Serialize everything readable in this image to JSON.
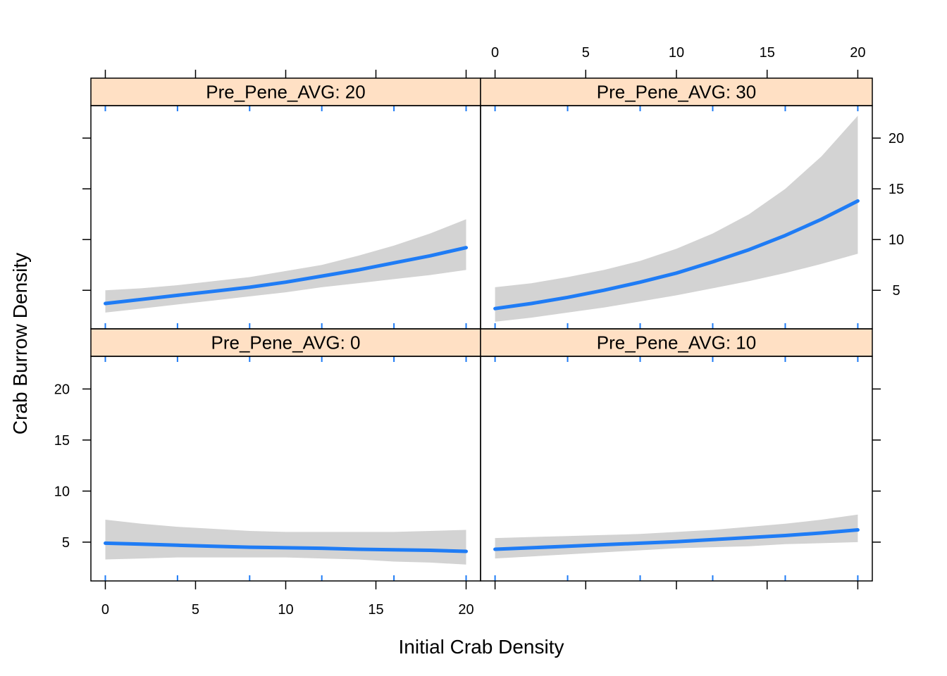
{
  "chart_data": {
    "type": "line",
    "xlabel": "Initial Crab Density",
    "ylabel": "Crab Burrow Density",
    "xlim": [
      -0.8,
      20.8
    ],
    "ylim": [
      1.2,
      23.2
    ],
    "x_ticks": [
      0,
      5,
      10,
      15,
      20
    ],
    "y_ticks": [
      5,
      10,
      15,
      20
    ],
    "x_rug": [
      0,
      4,
      8,
      12,
      16,
      20
    ],
    "colors": {
      "line": "#1f7cf5",
      "band": "#d3d3d3",
      "strip": "#ffe0c4",
      "rug": "#1f7cf5"
    },
    "panels": [
      {
        "strip_label": "Pre_Pene_AVG: 20",
        "position": "top-left",
        "x": [
          0,
          2,
          4,
          6,
          8,
          10,
          12,
          14,
          16,
          18,
          20
        ],
        "fit": [
          3.7,
          4.1,
          4.5,
          4.9,
          5.3,
          5.8,
          6.4,
          7.0,
          7.7,
          8.4,
          9.2
        ],
        "lower": [
          2.8,
          3.2,
          3.6,
          4.0,
          4.4,
          4.8,
          5.3,
          5.7,
          6.1,
          6.5,
          7.0
        ],
        "upper": [
          5.0,
          5.2,
          5.5,
          5.9,
          6.3,
          6.9,
          7.5,
          8.4,
          9.4,
          10.6,
          12.0
        ]
      },
      {
        "strip_label": "Pre_Pene_AVG: 30",
        "position": "top-right",
        "x": [
          0,
          2,
          4,
          6,
          8,
          10,
          12,
          14,
          16,
          18,
          20
        ],
        "fit": [
          3.2,
          3.7,
          4.3,
          5.0,
          5.8,
          6.7,
          7.8,
          9.0,
          10.4,
          12.0,
          13.8
        ],
        "lower": [
          1.9,
          2.3,
          2.8,
          3.3,
          3.9,
          4.5,
          5.2,
          5.9,
          6.7,
          7.6,
          8.6
        ],
        "upper": [
          5.3,
          5.7,
          6.3,
          7.0,
          7.9,
          9.1,
          10.6,
          12.5,
          15.0,
          18.2,
          22.2
        ]
      },
      {
        "strip_label": "Pre_Pene_AVG: 0",
        "position": "bottom-left",
        "x": [
          0,
          2,
          4,
          6,
          8,
          10,
          12,
          14,
          16,
          18,
          20
        ],
        "fit": [
          4.9,
          4.8,
          4.7,
          4.6,
          4.5,
          4.45,
          4.4,
          4.3,
          4.25,
          4.2,
          4.1
        ],
        "lower": [
          3.3,
          3.4,
          3.5,
          3.5,
          3.5,
          3.5,
          3.4,
          3.3,
          3.1,
          3.0,
          2.8
        ],
        "upper": [
          7.2,
          6.8,
          6.5,
          6.3,
          6.1,
          6.0,
          6.0,
          6.0,
          6.0,
          6.1,
          6.2
        ]
      },
      {
        "strip_label": "Pre_Pene_AVG: 10",
        "position": "bottom-right",
        "x": [
          0,
          2,
          4,
          6,
          8,
          10,
          12,
          14,
          16,
          18,
          20
        ],
        "fit": [
          4.3,
          4.45,
          4.6,
          4.75,
          4.9,
          5.05,
          5.25,
          5.45,
          5.65,
          5.9,
          6.2
        ],
        "lower": [
          3.4,
          3.6,
          3.8,
          4.0,
          4.2,
          4.4,
          4.5,
          4.6,
          4.8,
          4.9,
          5.0
        ],
        "upper": [
          5.4,
          5.5,
          5.6,
          5.7,
          5.8,
          6.0,
          6.2,
          6.5,
          6.8,
          7.2,
          7.7
        ]
      }
    ]
  }
}
